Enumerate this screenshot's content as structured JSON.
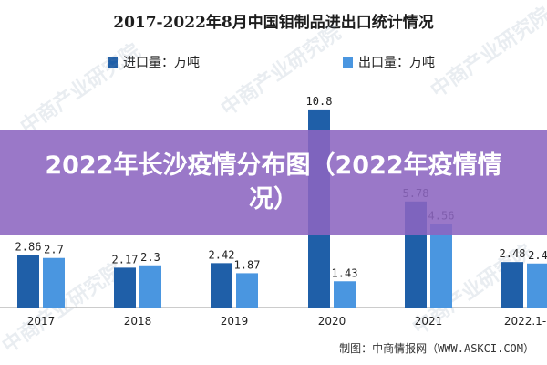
{
  "chart_data": {
    "type": "bar",
    "title": "2017-2022年8月中国钼制品进出口统计情况",
    "categories": [
      "2017",
      "2018",
      "2019",
      "2020",
      "2021",
      "2022.1-"
    ],
    "series": [
      {
        "name": "进口量：万吨",
        "color": "#1f5fa8",
        "values": [
          2.86,
          2.17,
          2.42,
          10.8,
          5.78,
          2.48
        ]
      },
      {
        "name": "出口量：万吨",
        "color": "#4a96e0",
        "values": [
          2.7,
          2.3,
          1.87,
          1.43,
          4.56,
          2.4
        ]
      }
    ],
    "value_labels": [
      [
        "2.86",
        "2.17",
        "2.42",
        "10.8",
        "5.78",
        "2.48"
      ],
      [
        "2.7",
        "2.3",
        "1.87",
        "1.43",
        "4.56",
        "2.4"
      ]
    ],
    "legend_placement": "top",
    "grid": false
  },
  "overlay": {
    "banner_text": "2022年长沙疫情分布图（2022年疫情情况）"
  },
  "source_credit": "制图：中商情报网（WWW.ASKCI.COM）",
  "watermark_text": "中商产业研究院"
}
